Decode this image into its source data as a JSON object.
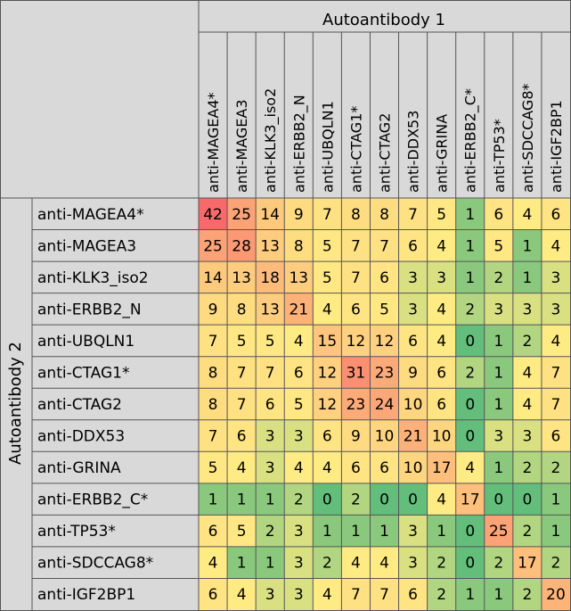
{
  "chart_data": {
    "type": "heatmap",
    "title": "",
    "col_axis_label": "Autoantibody 1",
    "row_axis_label": "Autoantibody 2",
    "columns": [
      "anti-MAGEA4*",
      "anti-MAGEA3",
      "anti-KLK3_iso2",
      "anti-ERBB2_N",
      "anti-UBQLN1",
      "anti-CTAG1*",
      "anti-CTAG2",
      "anti-DDX53",
      "anti-GRINA",
      "anti-ERBB2_C*",
      "anti-TP53*",
      "anti-SDCCAG8*",
      "anti-IGF2BP1"
    ],
    "rows": [
      "anti-MAGEA4*",
      "anti-MAGEA3",
      "anti-KLK3_iso2",
      "anti-ERBB2_N",
      "anti-UBQLN1",
      "anti-CTAG1*",
      "anti-CTAG2",
      "anti-DDX53",
      "anti-GRINA",
      "anti-ERBB2_C*",
      "anti-TP53*",
      "anti-SDCCAG8*",
      "anti-IGF2BP1"
    ],
    "values": [
      [
        42,
        25,
        14,
        9,
        7,
        8,
        8,
        7,
        5,
        1,
        6,
        4,
        6
      ],
      [
        25,
        28,
        13,
        8,
        5,
        7,
        7,
        6,
        4,
        1,
        5,
        1,
        4
      ],
      [
        14,
        13,
        18,
        13,
        5,
        7,
        6,
        3,
        3,
        1,
        2,
        1,
        3
      ],
      [
        9,
        8,
        13,
        21,
        4,
        6,
        5,
        3,
        4,
        2,
        3,
        3,
        3
      ],
      [
        7,
        5,
        5,
        4,
        15,
        12,
        12,
        6,
        4,
        0,
        1,
        2,
        4
      ],
      [
        8,
        7,
        7,
        6,
        12,
        31,
        23,
        9,
        6,
        2,
        1,
        4,
        7
      ],
      [
        8,
        7,
        6,
        5,
        12,
        23,
        24,
        10,
        6,
        0,
        1,
        4,
        7
      ],
      [
        7,
        6,
        3,
        3,
        6,
        9,
        10,
        21,
        10,
        0,
        3,
        3,
        6
      ],
      [
        5,
        4,
        3,
        4,
        4,
        6,
        6,
        10,
        17,
        4,
        1,
        2,
        2
      ],
      [
        1,
        1,
        1,
        2,
        0,
        2,
        0,
        0,
        4,
        17,
        0,
        0,
        1
      ],
      [
        6,
        5,
        2,
        3,
        1,
        1,
        1,
        3,
        1,
        0,
        25,
        2,
        1
      ],
      [
        4,
        1,
        1,
        3,
        2,
        4,
        4,
        3,
        2,
        0,
        2,
        17,
        2
      ],
      [
        6,
        4,
        3,
        3,
        4,
        7,
        7,
        6,
        2,
        1,
        1,
        2,
        20
      ]
    ],
    "color_scale": {
      "low": "#63be7b",
      "mid": "#ffeb84",
      "high": "#f8696b"
    },
    "header_background": "#d9d9d9",
    "grid_color": "#555555"
  }
}
